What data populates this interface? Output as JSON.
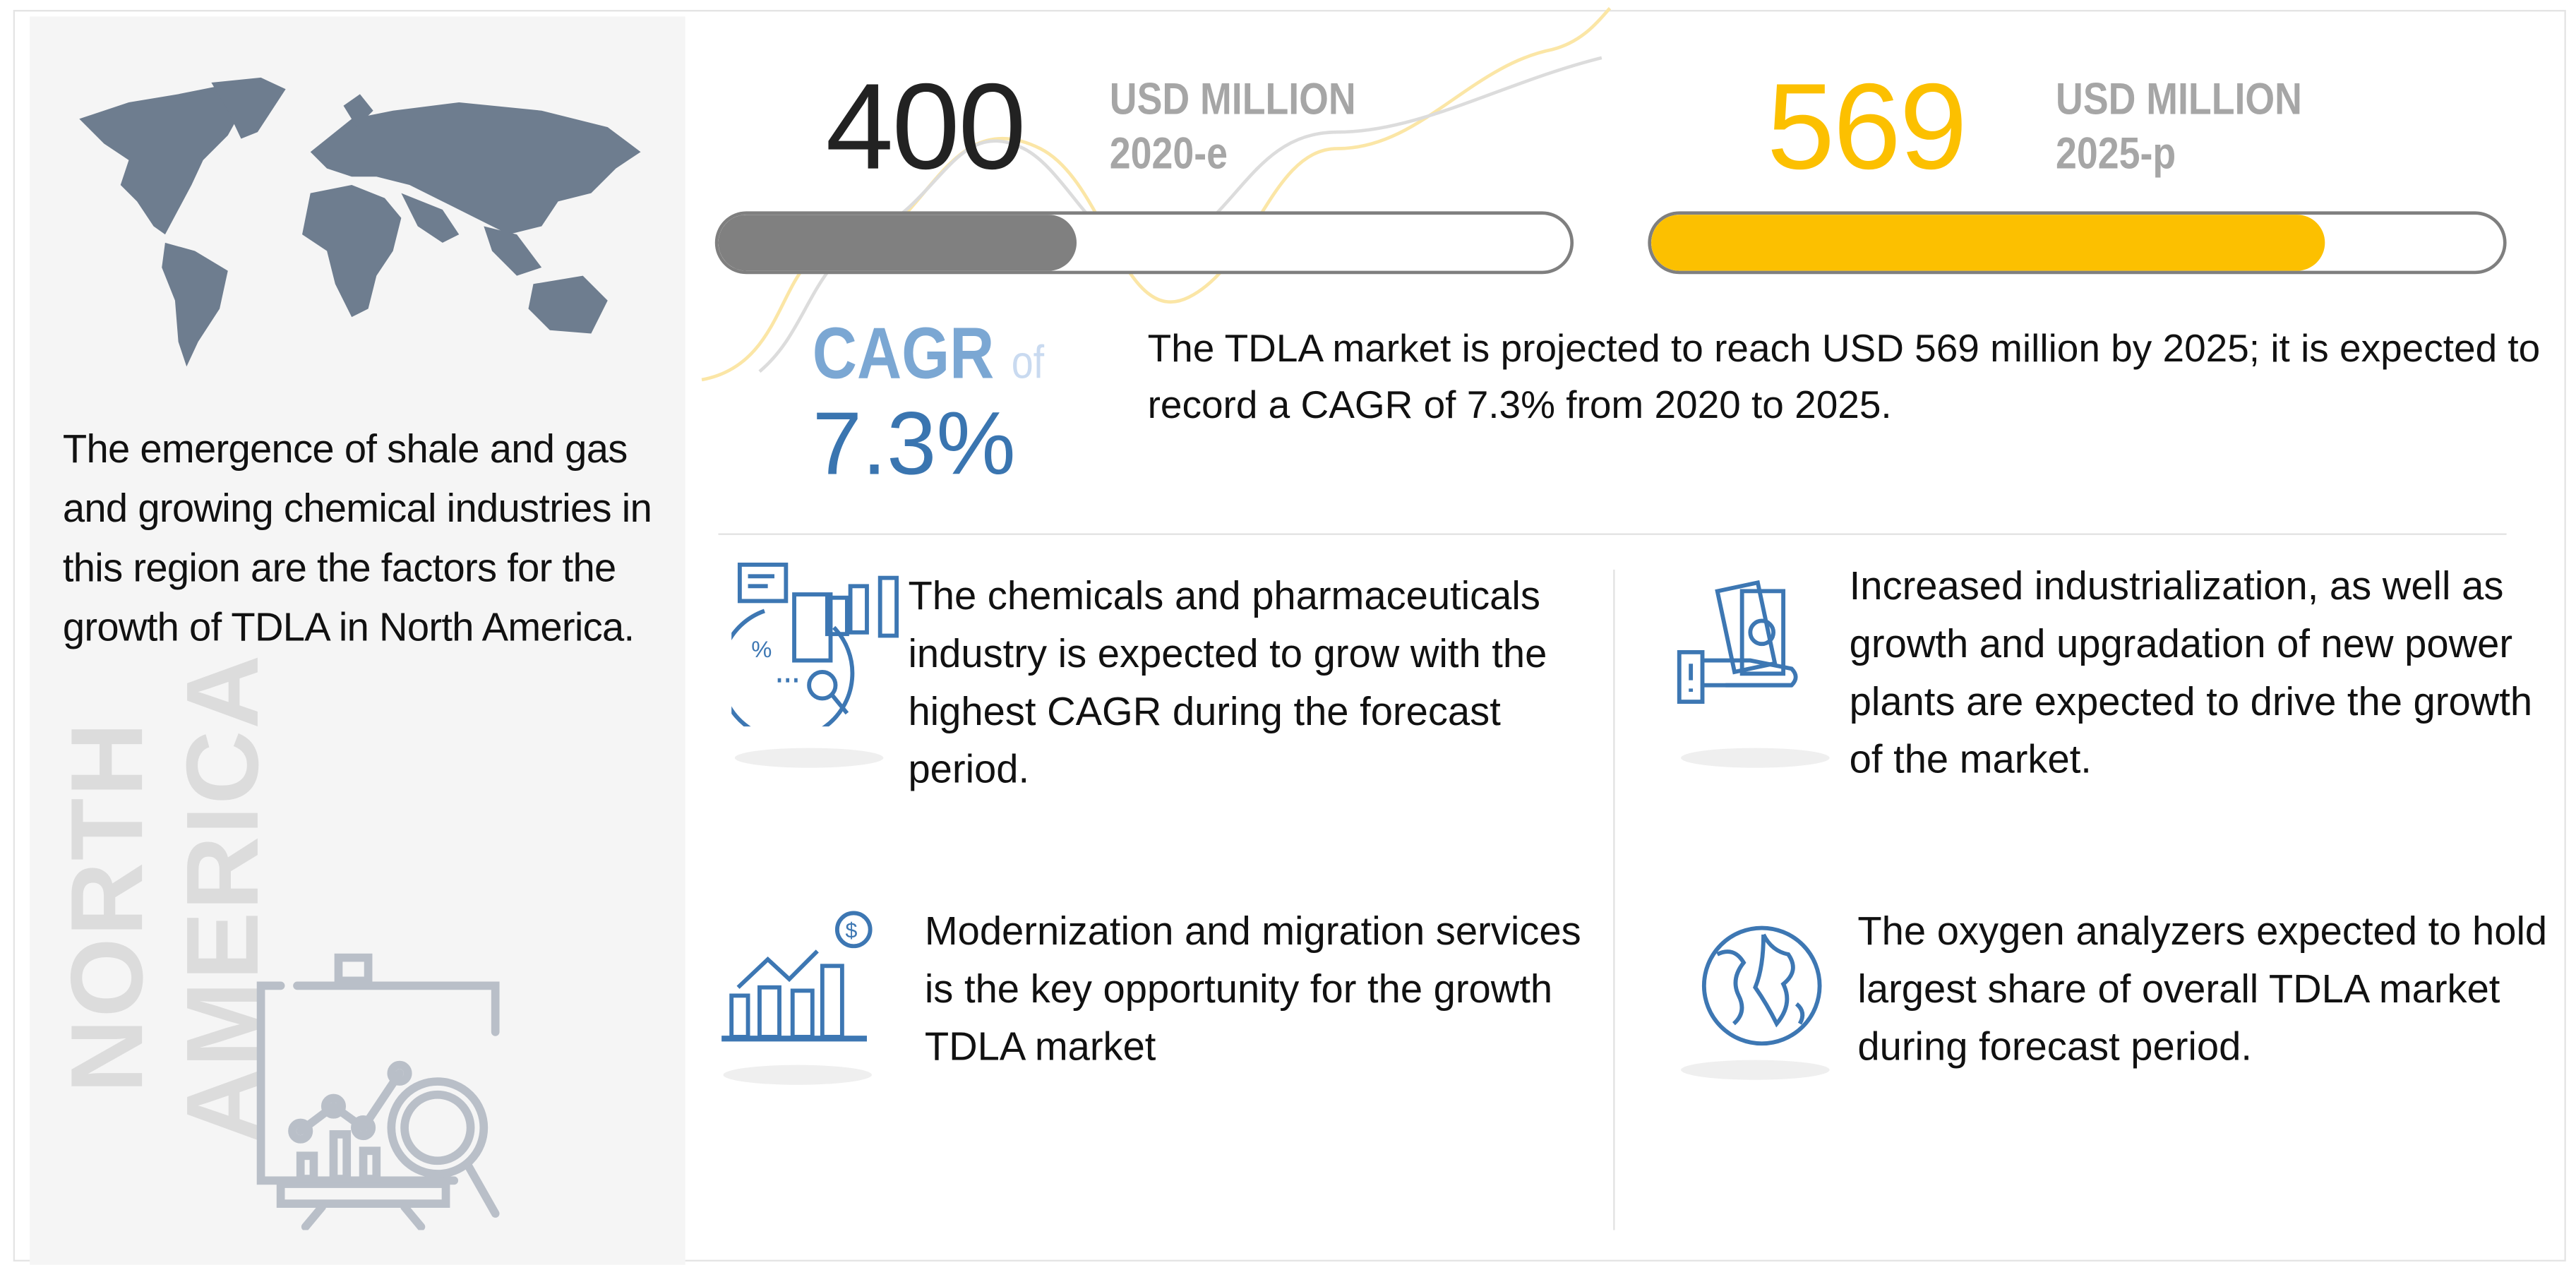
{
  "left": {
    "description": "The emergence of shale and gas and growing chemical industries in this region are the factors for the growth of TDLA in North America.",
    "region_line1": "NORTH",
    "region_line2": "AMERICA"
  },
  "stats": {
    "current": {
      "value": "400",
      "unit": "USD MILLION",
      "year": "2020-e",
      "bar_fraction": 0.42,
      "color": "#808080"
    },
    "projected": {
      "value": "569",
      "unit": "USD MILLION",
      "year": "2025-p",
      "bar_fraction": 0.79,
      "color": "#FCC000"
    }
  },
  "cagr": {
    "label": "CAGR",
    "of": "of",
    "value": "7.3%",
    "summary": "The TDLA market is projected to reach USD 569 million by 2025; it is expected to record a CAGR of 7.3% from 2020 to 2025."
  },
  "insights": [
    {
      "icon": "chart-analysis-icon",
      "text": "The chemicals and pharmaceuticals industry is expected to grow with the highest CAGR during the forecast period."
    },
    {
      "icon": "money-hand-icon",
      "text": "Increased industrialization, as well as growth and upgradation of new power plants are expected to drive the growth of the market."
    },
    {
      "icon": "growth-chart-dollar-icon",
      "text": "Modernization and migration services is the key opportunity for the growth TDLA market"
    },
    {
      "icon": "globe-icon",
      "text": "The oxygen analyzers expected to hold largest share of overall TDLA market during forecast period."
    }
  ],
  "colors": {
    "blue": "#3D77B3",
    "yellow": "#FCC000",
    "gray": "#808080"
  }
}
